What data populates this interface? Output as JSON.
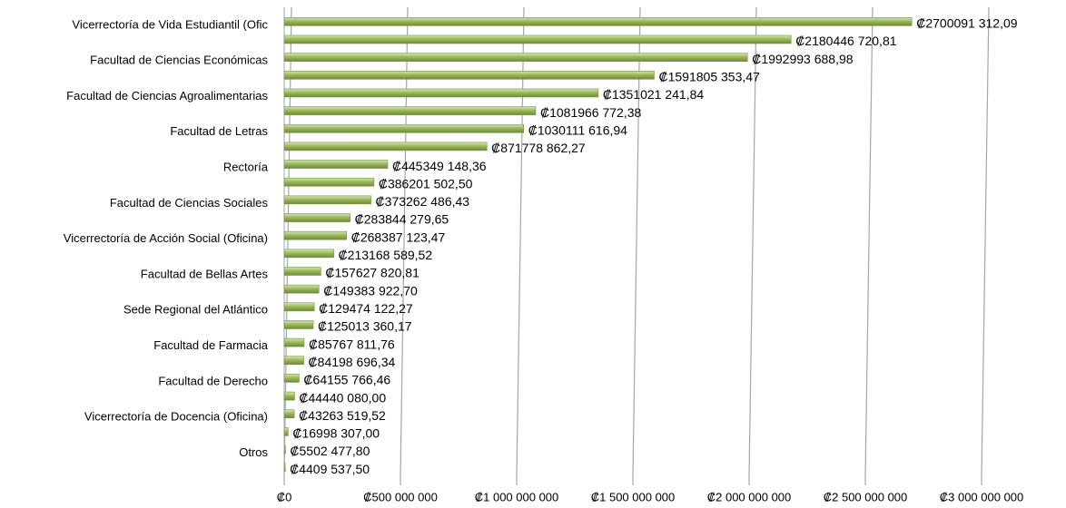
{
  "chart_data": {
    "type": "bar",
    "orientation": "horizontal",
    "categories": [
      "Vicerrectoría de Vida Estudiantil (Ofic",
      null,
      "Facultad de Ciencias Económicas",
      null,
      "Facultad de Ciencias Agroalimentarias",
      null,
      "Facultad de Letras",
      null,
      "Rectoría",
      null,
      "Facultad de Ciencias Sociales",
      null,
      "Vicerrectoría de Acción Social (Oficina)",
      null,
      "Facultad de Bellas Artes",
      null,
      "Sede Regional del Atlántico",
      null,
      "Facultad de Farmacia",
      null,
      "Facultad de Derecho",
      null,
      "Vicerrectoría de Docencia (Oficina)",
      null,
      "Otros",
      null
    ],
    "values": [
      2700091312.09,
      2180446720.81,
      1992993688.98,
      1591805353.47,
      1351021241.84,
      1081966772.38,
      1030111616.94,
      871778862.27,
      445349148.36,
      386201502.5,
      373262486.43,
      283844279.65,
      268387123.47,
      213168589.52,
      157627820.81,
      149383922.7,
      129474122.27,
      125013360.17,
      85767811.76,
      84198696.34,
      64155766.46,
      44440080.0,
      43263519.52,
      16998307.0,
      5502477.8,
      4409537.5
    ],
    "value_labels": [
      "₡2700091 312,09",
      "₡2180446 720,81",
      "₡1992993 688,98",
      "₡1591805 353,47",
      "₡1351021 241,84",
      "₡1081966 772,38",
      "₡1030111 616,94",
      "₡871778 862,27",
      "₡445349 148,36",
      "₡386201 502,50",
      "₡373262 486,43",
      "₡283844 279,65",
      "₡268387 123,47",
      "₡213168 589,52",
      "₡157627 820,81",
      "₡149383 922,70",
      "₡129474 122,27",
      "₡125013 360,17",
      "₡85767 811,76",
      "₡84198 696,34",
      "₡64155 766,46",
      "₡44440 080,00",
      "₡43263 519,52",
      "₡16998 307,00",
      "₡5502 477,80",
      "₡4409 537,50"
    ],
    "color": "#9bbb59",
    "xlim": [
      0,
      3000000000
    ],
    "xticks": [
      {
        "value": 0,
        "label": "₡0"
      },
      {
        "value": 500000000,
        "label": "₡500 000 000"
      },
      {
        "value": 1000000000,
        "label": "₡1 000 000 000"
      },
      {
        "value": 1500000000,
        "label": "₡1 500 000 000"
      },
      {
        "value": 2000000000,
        "label": "₡2 000 000 000"
      },
      {
        "value": 2500000000,
        "label": "₡2 500 000 000"
      },
      {
        "value": 3000000000,
        "label": "₡3 000 000 000"
      }
    ],
    "grid": true
  }
}
